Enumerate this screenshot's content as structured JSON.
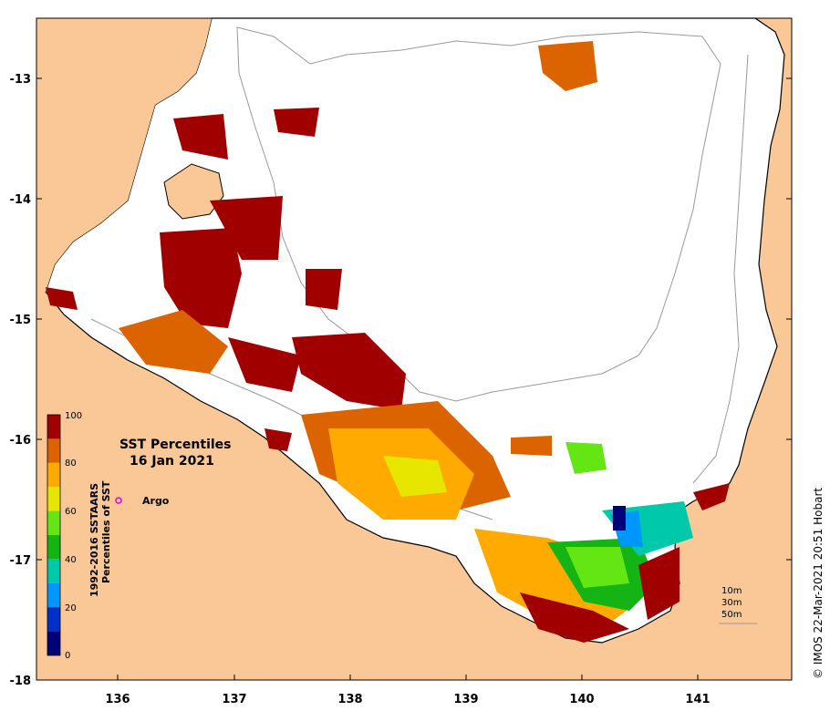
{
  "map": {
    "title_line1": "SST Percentiles",
    "title_line2": "16 Jan 2021",
    "legend_marker_label": "Argo",
    "credit": "© IMOS 22-Mar-2021 20:51 Hobart",
    "colorbar_title1": "1992-2016 SSTAARS",
    "colorbar_title2": "Percentiles of SST",
    "colorbar_ticks": [
      "100",
      "80",
      "60",
      "40",
      "20",
      "0"
    ],
    "x_ticks": [
      "136",
      "137",
      "138",
      "139",
      "140",
      "141"
    ],
    "y_ticks": [
      "-13",
      "-14",
      "-15",
      "-16",
      "-17",
      "-18"
    ],
    "isobaths": [
      "10m",
      "30m",
      "50m"
    ],
    "colors": {
      "land": "#FAC896",
      "water": "#FFFFFF",
      "argo_marker": "#E600E6",
      "percentile_bands": [
        "#000078",
        "#0030C8",
        "#0096FF",
        "#00C8AA",
        "#14B414",
        "#64E614",
        "#E6E600",
        "#FFAA00",
        "#DC6400",
        "#A00000"
      ]
    }
  }
}
